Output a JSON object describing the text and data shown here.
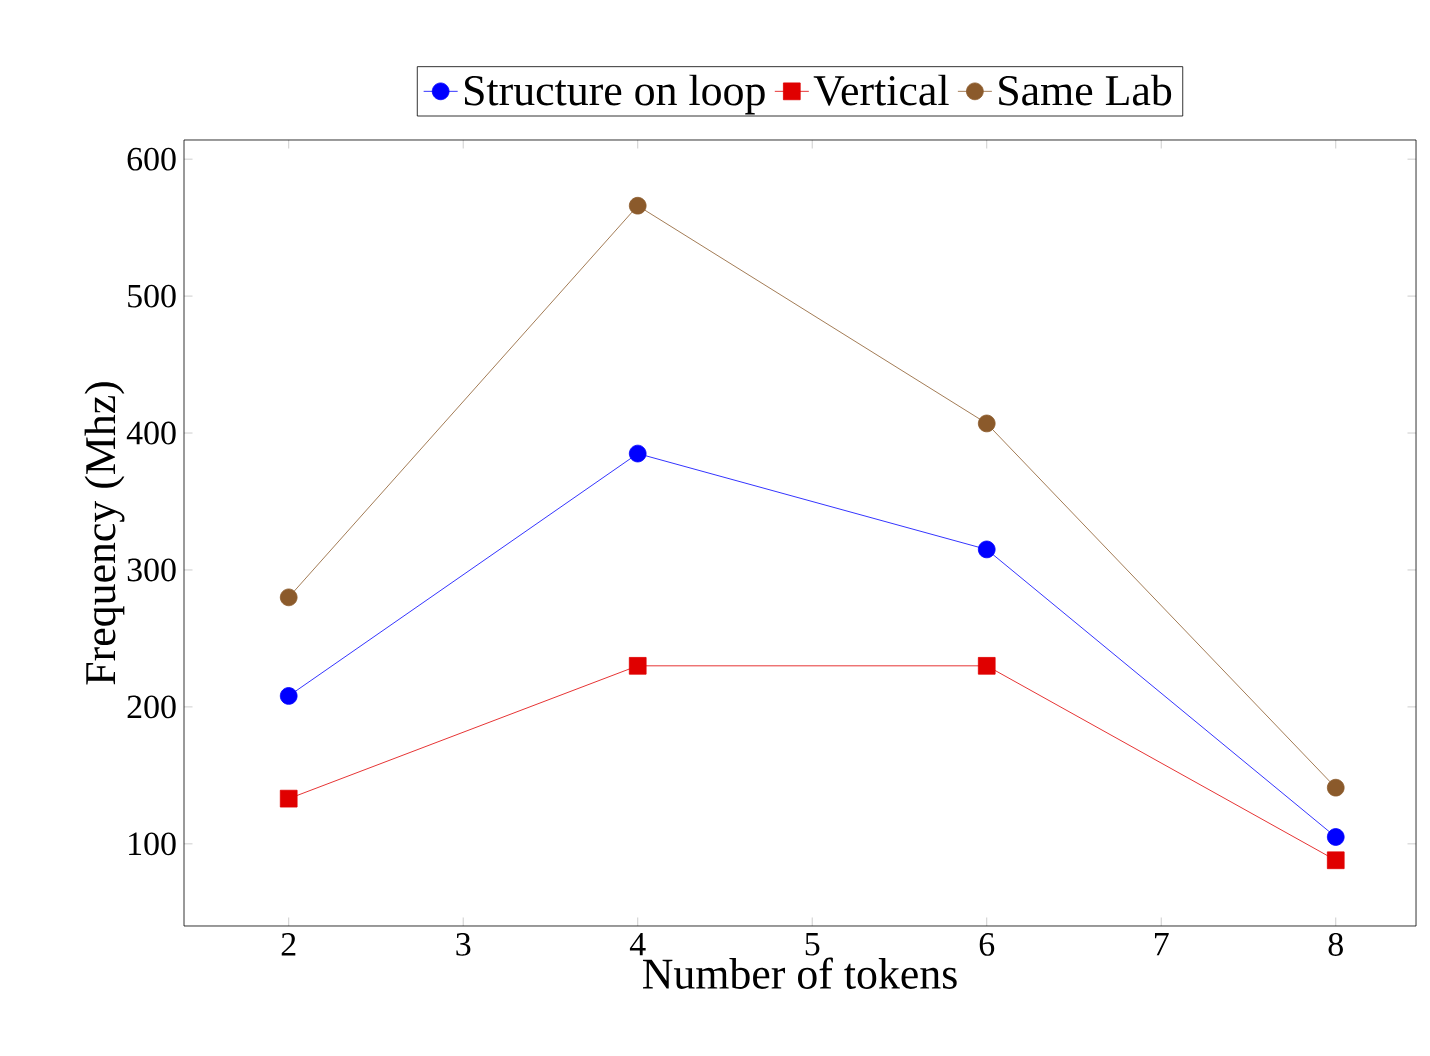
{
  "chart_data": {
    "type": "line",
    "xlabel": "Number of tokens",
    "ylabel": "Frequency (Mhz)",
    "x": [
      2,
      4,
      6,
      8
    ],
    "series": [
      {
        "name": "Structure on loop",
        "color": "#0000ff",
        "marker": "circle",
        "values": [
          208,
          385,
          315,
          105
        ]
      },
      {
        "name": "Vertical",
        "color": "#e00000",
        "marker": "square",
        "values": [
          133,
          230,
          230,
          88
        ]
      },
      {
        "name": "Same Lab",
        "color": "#8b5a2b",
        "marker": "circle",
        "values": [
          280,
          566,
          407,
          141
        ]
      }
    ],
    "xlim": [
      1.4,
      8.46
    ],
    "ylim": [
      40,
      614
    ],
    "xticks": [
      2,
      3,
      4,
      5,
      6,
      7,
      8
    ],
    "yticks": [
      100,
      200,
      300,
      400,
      500,
      600
    ],
    "legend": "top",
    "grid": false
  }
}
